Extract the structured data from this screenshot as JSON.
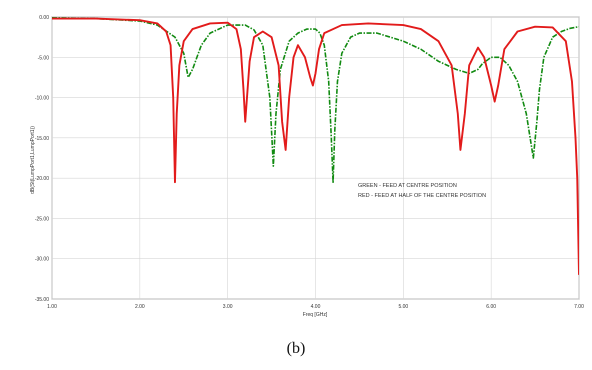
{
  "caption": "(b)",
  "chart_data": {
    "type": "line",
    "title": "",
    "xlabel": "Freq [GHz]",
    "ylabel": "dB(St(LumpPort1,LumpPort1))",
    "xlim": [
      1.0,
      7.0
    ],
    "ylim": [
      -35.0,
      0.0
    ],
    "x_ticks": [
      "1.00",
      "2.00",
      "3.00",
      "4.00",
      "5.00",
      "6.00",
      "7.00"
    ],
    "y_ticks": [
      "0.00",
      "-5.00",
      "-10.00",
      "-15.00",
      "-20.00",
      "-25.00",
      "-30.00",
      "-35.00"
    ],
    "grid": true,
    "legend": {
      "placement": "right",
      "entries": [
        "GREEN - FEED AT CENTRE POSITION",
        "RED - FEED AT HALF OF THE CENTRE POSITION"
      ]
    },
    "series": [
      {
        "color": "#118a11",
        "dashed": true,
        "x": [
          1.0,
          1.5,
          2.0,
          2.2,
          2.4,
          2.5,
          2.55,
          2.6,
          2.7,
          2.8,
          3.0,
          3.2,
          3.3,
          3.4,
          3.48,
          3.52,
          3.55,
          3.6,
          3.7,
          3.8,
          3.9,
          4.0,
          4.05,
          4.1,
          4.15,
          4.18,
          4.2,
          4.22,
          4.25,
          4.3,
          4.4,
          4.5,
          4.7,
          5.0,
          5.2,
          5.4,
          5.6,
          5.75,
          5.85,
          5.9,
          6.0,
          6.1,
          6.2,
          6.3,
          6.4,
          6.48,
          6.52,
          6.55,
          6.6,
          6.7,
          6.8,
          6.9,
          7.0
        ],
        "y": [
          -0.1,
          -0.2,
          -0.5,
          -1.0,
          -2.5,
          -4.5,
          -7.5,
          -6.5,
          -3.5,
          -2.0,
          -1.0,
          -1.0,
          -1.6,
          -3.5,
          -10.0,
          -18.5,
          -12.0,
          -6.5,
          -3.0,
          -2.0,
          -1.5,
          -1.5,
          -2.0,
          -3.5,
          -8.0,
          -15.0,
          -20.5,
          -14.0,
          -8.0,
          -4.5,
          -2.5,
          -2.0,
          -2.0,
          -3.0,
          -4.0,
          -5.5,
          -6.5,
          -7.0,
          -6.5,
          -5.8,
          -5.0,
          -5.0,
          -6.0,
          -8.0,
          -12.0,
          -17.5,
          -13.0,
          -9.0,
          -5.0,
          -2.5,
          -1.8,
          -1.4,
          -1.2
        ]
      },
      {
        "color": "#e21b1b",
        "dashed": false,
        "x": [
          1.0,
          1.5,
          2.0,
          2.2,
          2.3,
          2.35,
          2.38,
          2.4,
          2.42,
          2.45,
          2.5,
          2.6,
          2.8,
          3.0,
          3.1,
          3.15,
          3.18,
          3.2,
          3.22,
          3.25,
          3.3,
          3.4,
          3.5,
          3.58,
          3.62,
          3.66,
          3.7,
          3.75,
          3.8,
          3.88,
          3.94,
          3.97,
          4.0,
          4.04,
          4.1,
          4.3,
          4.6,
          5.0,
          5.2,
          5.4,
          5.55,
          5.62,
          5.65,
          5.7,
          5.75,
          5.85,
          5.92,
          6.0,
          6.04,
          6.08,
          6.15,
          6.3,
          6.5,
          6.7,
          6.85,
          6.92,
          6.96,
          6.98,
          7.0
        ],
        "y": [
          -0.2,
          -0.2,
          -0.4,
          -0.8,
          -1.8,
          -3.5,
          -10.0,
          -20.5,
          -12.0,
          -6.0,
          -3.0,
          -1.5,
          -0.8,
          -0.7,
          -1.5,
          -4.0,
          -9.0,
          -13.0,
          -10.0,
          -5.5,
          -2.5,
          -1.8,
          -2.5,
          -6.0,
          -13.0,
          -16.5,
          -10.0,
          -5.0,
          -3.5,
          -5.0,
          -7.5,
          -8.5,
          -7.0,
          -4.0,
          -2.0,
          -1.0,
          -0.8,
          -1.0,
          -1.5,
          -3.0,
          -6.0,
          -12.0,
          -16.5,
          -12.0,
          -6.0,
          -3.8,
          -5.0,
          -8.5,
          -10.5,
          -8.5,
          -4.0,
          -1.8,
          -1.2,
          -1.3,
          -3.0,
          -8.0,
          -15.0,
          -20.0,
          -32.0
        ]
      }
    ]
  }
}
